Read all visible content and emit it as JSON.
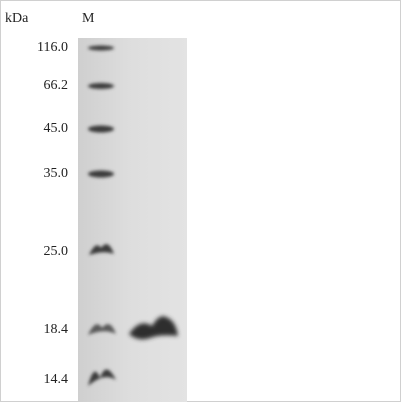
{
  "header": {
    "unit": "kDa",
    "lane": "M"
  },
  "markers": [
    "116.0",
    "66.2",
    "45.0",
    "35.0",
    "25.0",
    "18.4",
    "14.4"
  ]
}
